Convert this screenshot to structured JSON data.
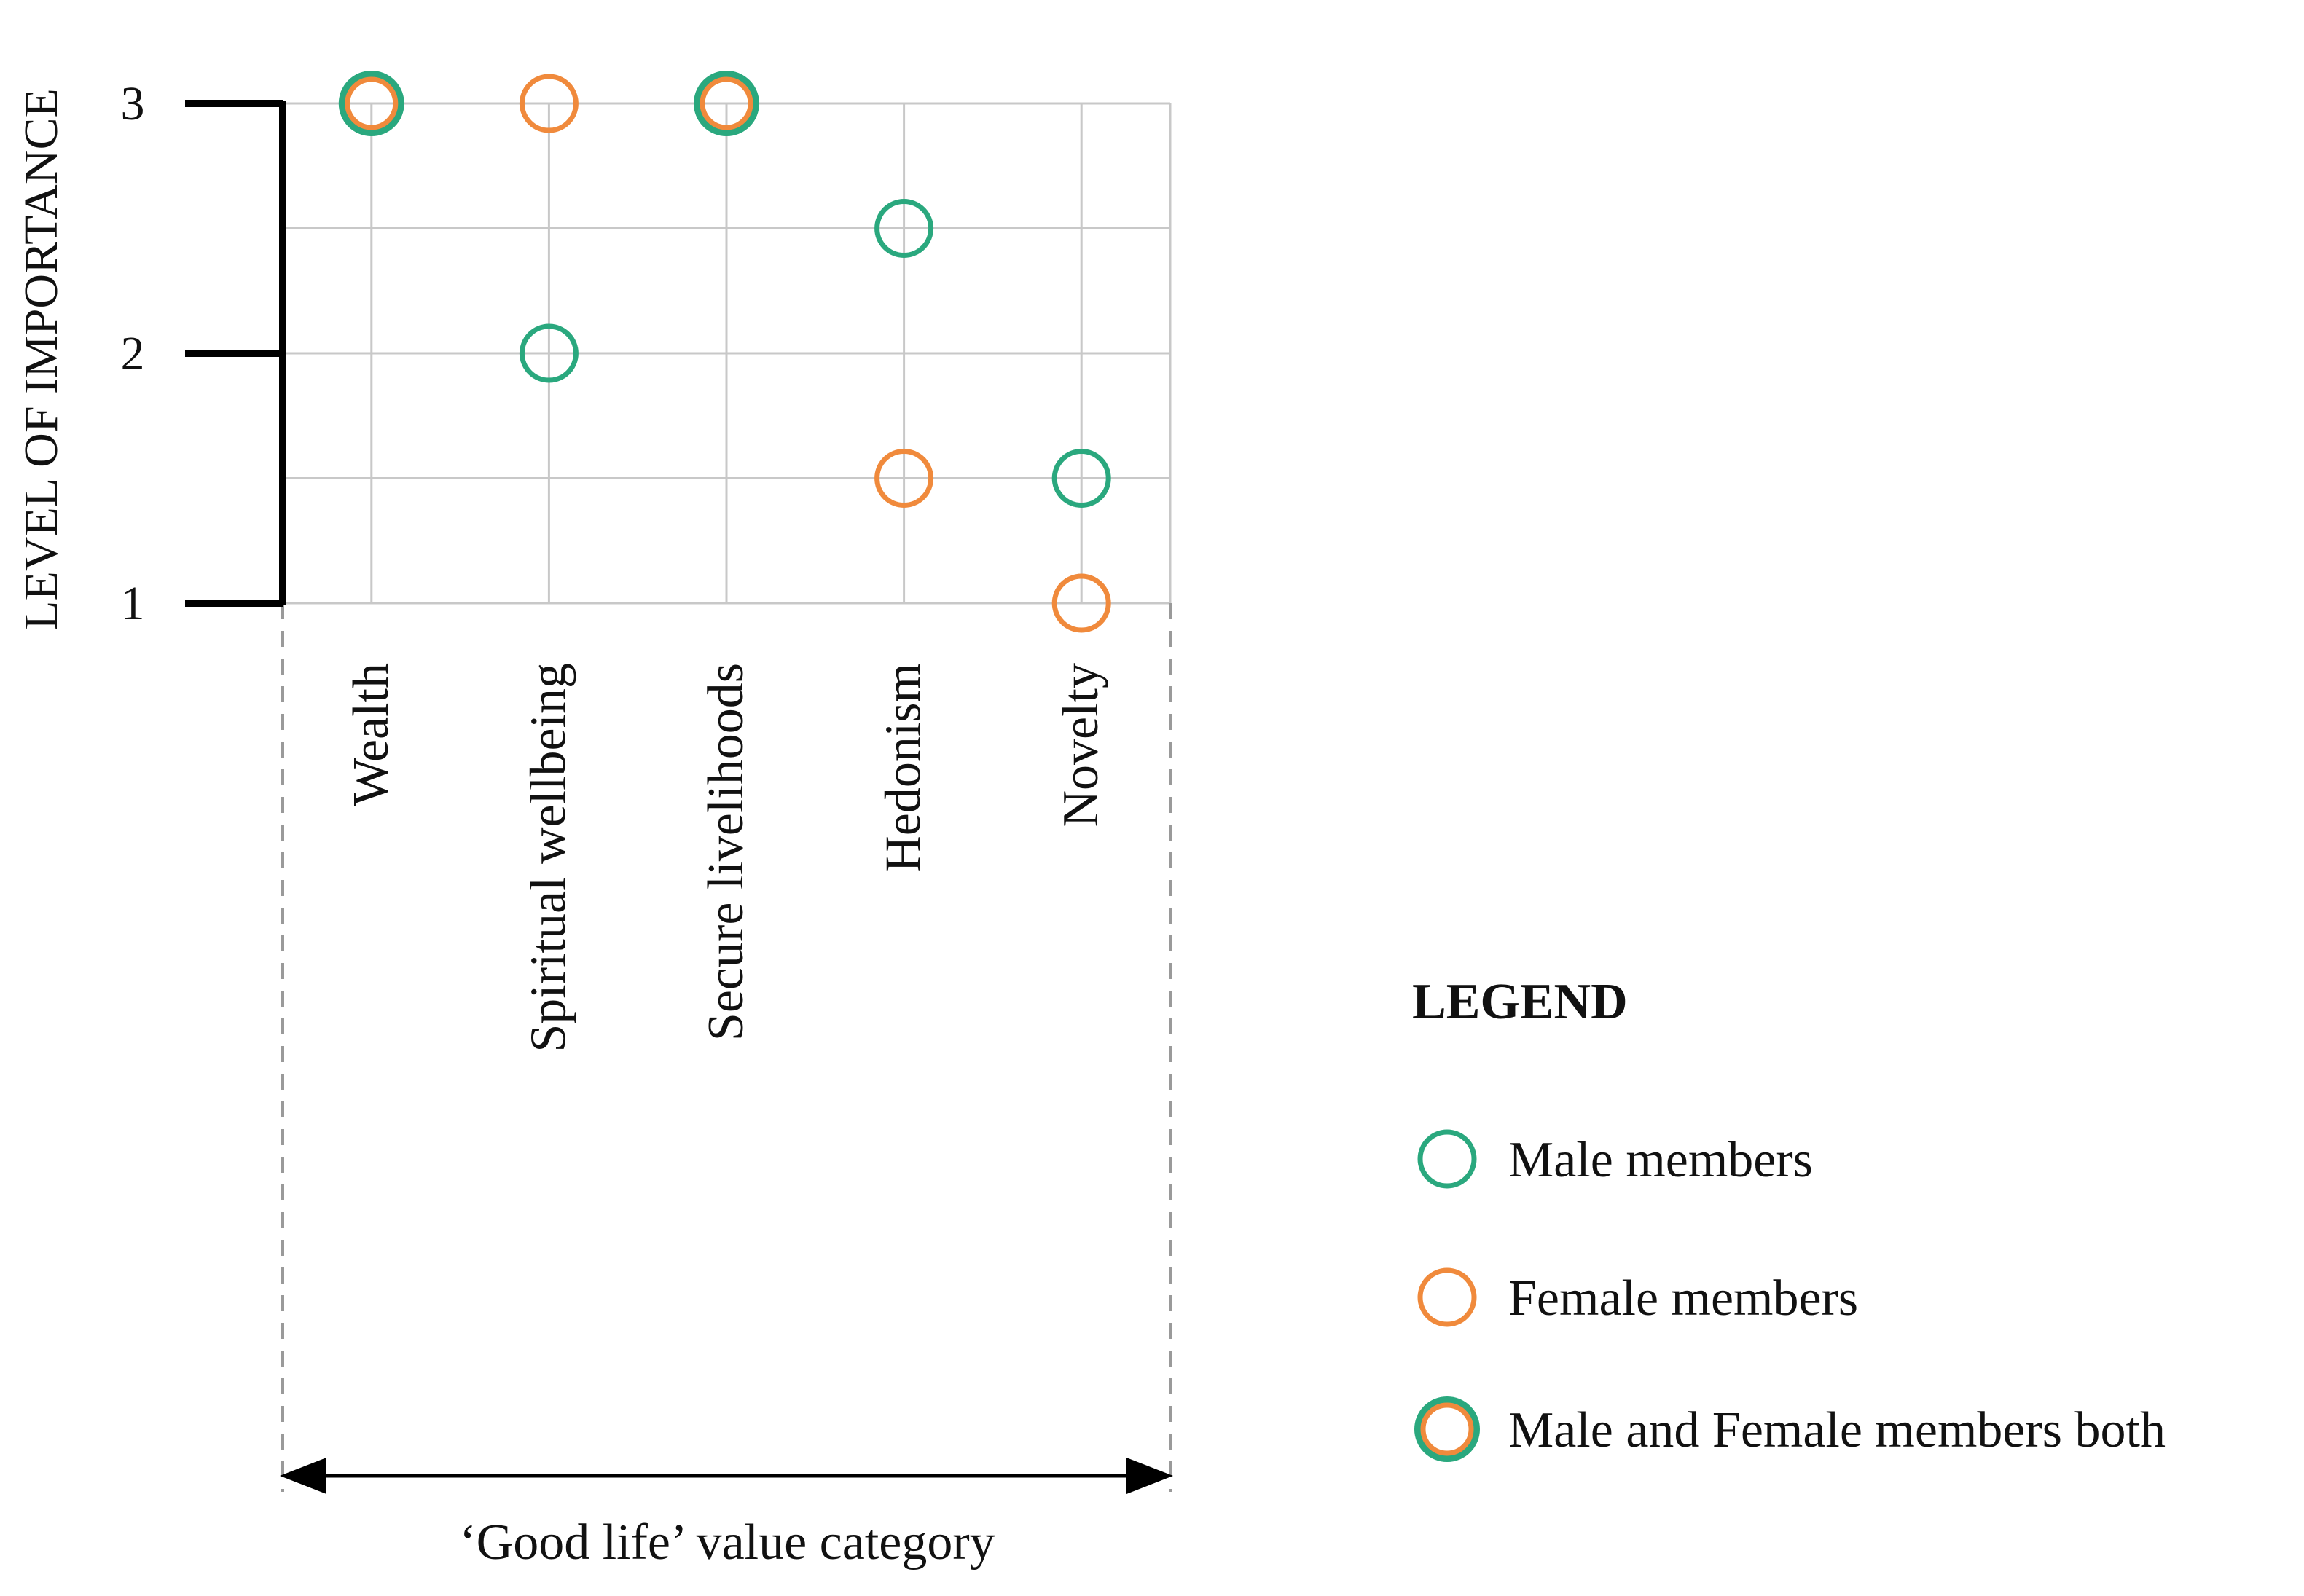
{
  "chart_data": {
    "type": "scatter",
    "ylabel": "LEVEL OF IMPORTANCE",
    "xlabel": "‘Good life’ value category",
    "categories": [
      "Wealth",
      "Spiritual wellbeing",
      "Secure livelihoods",
      "Hedonism",
      "Novelty"
    ],
    "ylim": [
      1,
      3
    ],
    "yticks": [
      "1",
      "2",
      "3"
    ],
    "grid": true,
    "legend_position": "bottom-right",
    "series": [
      {
        "name": "Male members",
        "color": "#2aa87e",
        "points": [
          {
            "category": "Spiritual wellbeing",
            "y": 2
          },
          {
            "category": "Hedonism",
            "y": 2.5
          },
          {
            "category": "Novelty",
            "y": 1.5
          }
        ]
      },
      {
        "name": "Female members",
        "color": "#f08a3c",
        "points": [
          {
            "category": "Spiritual wellbeing",
            "y": 3
          },
          {
            "category": "Hedonism",
            "y": 1.5
          },
          {
            "category": "Novelty",
            "y": 1
          }
        ]
      },
      {
        "name": "Male and Female members both",
        "color": "#f08a3c",
        "ring_color": "#2aa87e",
        "points": [
          {
            "category": "Wealth",
            "y": 3
          },
          {
            "category": "Secure livelihoods",
            "y": 3
          }
        ]
      }
    ]
  },
  "legend": {
    "title": "LEGEND",
    "items": [
      {
        "label": "Male members",
        "icon": "green-circle-icon"
      },
      {
        "label": "Female members",
        "icon": "orange-circle-icon"
      },
      {
        "label": "Male and Female members both",
        "icon": "green-orange-circle-icon"
      }
    ]
  }
}
